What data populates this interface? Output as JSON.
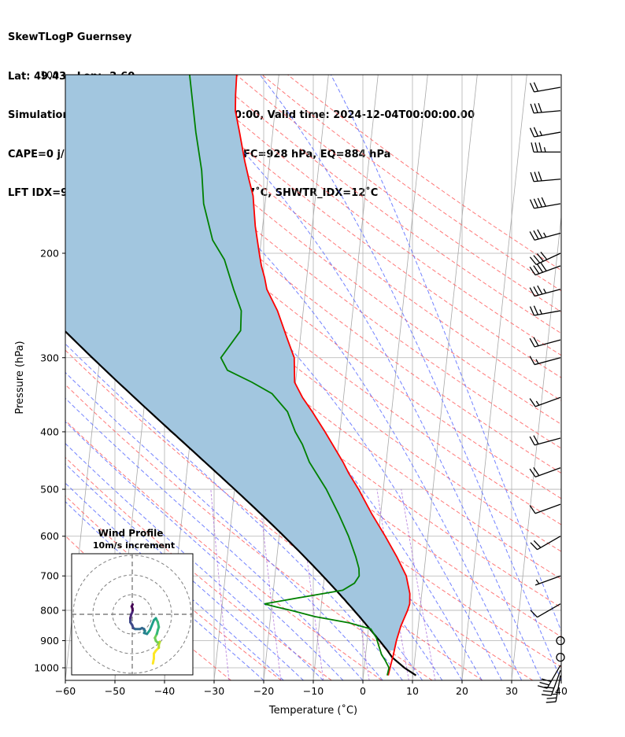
{
  "header": {
    "line1": "SkewTLogP Guernsey",
    "line2": "Lat: 49.43   Lon: -2.60",
    "line3": "Simulation start time: 2024-12-02_00:00:00, Valid time: 2024-12-04T00:00:00.00",
    "line4": "CAPE=0 j/kg, CIN=0 j/kg, LCL=935 hPa, LFC=928 hPa, EQ=884 hPa",
    "line5": "LFT IDX=9˚C, K IDX=11˚C, TOTAL TOTS=37˚C, SHWTR_IDX=12˚C"
  },
  "chart_data": {
    "type": "line",
    "title": "SkewTLogP Guernsey",
    "xlabel": "Temperature (˚C)",
    "ylabel": "Pressure (hPa)",
    "xlim": [
      -60,
      40
    ],
    "ylim": [
      1050,
      100
    ],
    "yscale": "log",
    "x_ticks": [
      "−60",
      "−50",
      "−40",
      "−30",
      "−20",
      "−10",
      "0",
      "10",
      "20",
      "30",
      "40"
    ],
    "x_tick_values": [
      -60,
      -50,
      -40,
      -30,
      -20,
      -10,
      0,
      10,
      20,
      30,
      40
    ],
    "y_ticks": [
      "100",
      "200",
      "300",
      "400",
      "500",
      "600",
      "700",
      "800",
      "900",
      "1000"
    ],
    "y_tick_values": [
      100,
      200,
      300,
      400,
      500,
      600,
      700,
      800,
      900,
      1000
    ],
    "grid": true,
    "colors": {
      "temperature": "#ff0000",
      "dewpoint": "#008000",
      "parcel": "#000000",
      "cape_fill": "#a2c6df",
      "dry_adiabat": "#ff6060",
      "moist_adiabat": "#5a6cff",
      "mixing_ratio": "#9b4fd0",
      "isotherm": "#a8a8a8"
    },
    "series": [
      {
        "key": "temperature",
        "p": [
          1030,
          1000,
          950,
          900,
          850,
          800,
          780,
          750,
          700,
          650,
          600,
          550,
          500,
          470,
          450,
          400,
          370,
          350,
          330,
          300,
          280,
          250,
          230,
          220,
          210,
          200,
          180,
          160,
          150,
          140,
          125,
          115,
          108,
          100
        ],
        "t": [
          5.0,
          5.2,
          5.6,
          5.9,
          6.5,
          7.5,
          7.8,
          7.6,
          6.5,
          4.2,
          1.4,
          -1.8,
          -5.0,
          -7.3,
          -8.7,
          -13.0,
          -16.0,
          -18.3,
          -20.2,
          -20.8,
          -22.5,
          -25.2,
          -27.8,
          -28.5,
          -29.4,
          -30.1,
          -31.5,
          -32.6,
          -33.8,
          -35.0,
          -36.7,
          -38.0,
          -38.3,
          -38.5
        ]
      },
      {
        "key": "dewpoint",
        "p": [
          1030,
          1000,
          970,
          950,
          920,
          890,
          860,
          840,
          820,
          800,
          790,
          780,
          760,
          740,
          720,
          700,
          680,
          650,
          600,
          550,
          500,
          450,
          420,
          400,
          370,
          345,
          330,
          315,
          300,
          270,
          250,
          230,
          205,
          190,
          165,
          145,
          125,
          100
        ],
        "t": [
          4.8,
          5.0,
          4.0,
          3.2,
          2.5,
          1.8,
          0.5,
          -4.0,
          -11.0,
          -16.0,
          -19.0,
          -21.5,
          -14.0,
          -6.0,
          -3.8,
          -3.0,
          -3.2,
          -4.1,
          -6.0,
          -8.5,
          -11.5,
          -15.5,
          -17.3,
          -19.0,
          -21.0,
          -24.5,
          -28.8,
          -34.0,
          -35.6,
          -32.2,
          -32.5,
          -34.5,
          -37.0,
          -39.8,
          -42.4,
          -43.5,
          -45.5,
          -48.0
        ]
      },
      {
        "key": "parcel",
        "p": [
          1030,
          1000,
          960,
          935
        ],
        "t": [
          10.6,
          8.1,
          5.4,
          4.3
        ]
      }
    ],
    "wind_barbs": {
      "p": [
        1030,
        1010,
        990,
        960,
        900,
        780,
        700,
        600,
        530,
        460,
        410,
        350,
        300,
        280,
        250,
        230,
        210,
        200,
        185,
        165,
        150,
        135,
        125,
        115,
        105
      ],
      "speed_kt": [
        25,
        30,
        30,
        0,
        0,
        10,
        5,
        20,
        10,
        20,
        20,
        15,
        15,
        20,
        25,
        35,
        40,
        40,
        35,
        40,
        30,
        35,
        25,
        30,
        20
      ],
      "dir_deg": [
        190,
        200,
        210,
        0,
        0,
        240,
        250,
        240,
        250,
        250,
        255,
        250,
        255,
        255,
        260,
        255,
        250,
        245,
        255,
        260,
        265,
        270,
        260,
        265,
        260
      ]
    },
    "hodograph": {
      "title": "Wind Profile",
      "subtitle": "10m/s increment",
      "u": [
        10.5,
        11.0,
        11.0,
        12.0,
        13.5,
        13.5,
        14.0,
        13.0,
        12.0,
        11.5,
        12.5,
        13.0,
        13.5,
        13.0,
        12.0,
        11.0,
        9.0,
        7.5,
        6.0,
        6.5,
        6.0,
        5.0,
        4.0,
        1.5,
        0.5,
        0.0,
        -1.0,
        -1.0,
        -0.5,
        0.0,
        0.2,
        0.1,
        -0.3,
        0.2
      ],
      "v": [
        -25.0,
        -22.5,
        -20.0,
        -18.5,
        -17.0,
        -15.5,
        -14.0,
        -14.5,
        -13.5,
        -12.0,
        -10.0,
        -8.0,
        -6.5,
        -4.0,
        -2.0,
        -3.0,
        -8.0,
        -10.0,
        -9.5,
        -8.5,
        -7.5,
        -7.0,
        -7.5,
        -7.5,
        -7.0,
        -5.5,
        -4.0,
        -2.0,
        0.0,
        1.0,
        2.0,
        3.0,
        4.0,
        5.0
      ]
    }
  }
}
